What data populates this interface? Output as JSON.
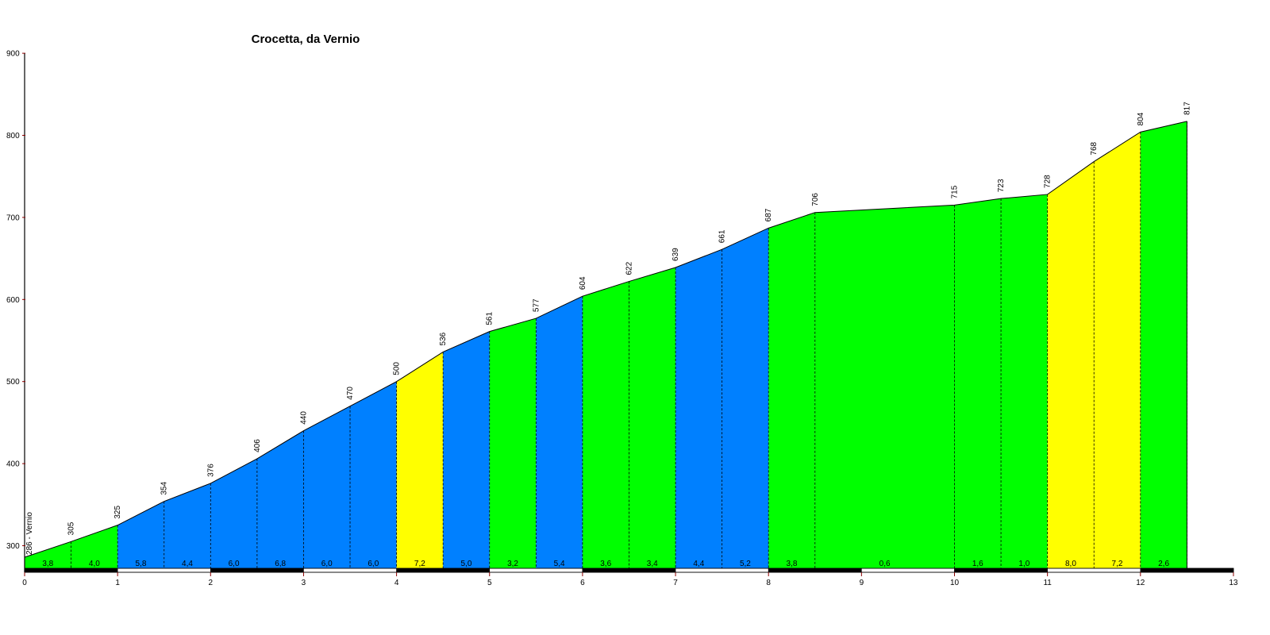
{
  "chart_data": {
    "type": "area",
    "title": "Crocetta, da Vernio",
    "xlim": [
      0,
      13
    ],
    "ylim": [
      270,
      900
    ],
    "x_ticks": [
      "0",
      "1",
      "2",
      "3",
      "4",
      "5",
      "6",
      "7",
      "8",
      "9",
      "10",
      "11",
      "12",
      "13"
    ],
    "y_ticks": [
      "300",
      "400",
      "500",
      "600",
      "700",
      "800",
      "900"
    ],
    "start_label": "286 - Vernio",
    "points": [
      {
        "x": 0,
        "y": 286
      },
      {
        "x": 0.5,
        "y": 305
      },
      {
        "x": 1,
        "y": 325
      },
      {
        "x": 1.5,
        "y": 354
      },
      {
        "x": 2,
        "y": 376
      },
      {
        "x": 2.5,
        "y": 406
      },
      {
        "x": 3,
        "y": 440
      },
      {
        "x": 3.5,
        "y": 470
      },
      {
        "x": 4,
        "y": 500
      },
      {
        "x": 4.5,
        "y": 536
      },
      {
        "x": 5,
        "y": 561
      },
      {
        "x": 5.5,
        "y": 577
      },
      {
        "x": 6,
        "y": 604
      },
      {
        "x": 6.5,
        "y": 622
      },
      {
        "x": 7,
        "y": 639
      },
      {
        "x": 7.5,
        "y": 661
      },
      {
        "x": 8,
        "y": 687
      },
      {
        "x": 8.5,
        "y": 706
      },
      {
        "x": 10,
        "y": 715
      },
      {
        "x": 10.5,
        "y": 723
      },
      {
        "x": 11,
        "y": 728
      },
      {
        "x": 11.5,
        "y": 768
      },
      {
        "x": 12,
        "y": 804
      },
      {
        "x": 12.5,
        "y": 817
      }
    ],
    "elevation_labels": [
      "305",
      "325",
      "354",
      "376",
      "406",
      "440",
      "470",
      "500",
      "536",
      "561",
      "577",
      "604",
      "622",
      "639",
      "661",
      "687",
      "706",
      "715",
      "723",
      "728",
      "768",
      "804",
      "817"
    ],
    "segments": [
      {
        "from": 0,
        "to": 0.5,
        "gradient": "3,8",
        "color": "#00ff00"
      },
      {
        "from": 0.5,
        "to": 1,
        "gradient": "4,0",
        "color": "#00ff00"
      },
      {
        "from": 1,
        "to": 1.5,
        "gradient": "5,8",
        "color": "#0080ff"
      },
      {
        "from": 1.5,
        "to": 2,
        "gradient": "4,4",
        "color": "#0080ff"
      },
      {
        "from": 2,
        "to": 2.5,
        "gradient": "6,0",
        "color": "#0080ff"
      },
      {
        "from": 2.5,
        "to": 3,
        "gradient": "6,8",
        "color": "#0080ff"
      },
      {
        "from": 3,
        "to": 3.5,
        "gradient": "6,0",
        "color": "#0080ff"
      },
      {
        "from": 3.5,
        "to": 4,
        "gradient": "6,0",
        "color": "#0080ff"
      },
      {
        "from": 4,
        "to": 4.5,
        "gradient": "7,2",
        "color": "#ffff00"
      },
      {
        "from": 4.5,
        "to": 5,
        "gradient": "5,0",
        "color": "#0080ff"
      },
      {
        "from": 5,
        "to": 5.5,
        "gradient": "3,2",
        "color": "#00ff00"
      },
      {
        "from": 5.5,
        "to": 6,
        "gradient": "5,4",
        "color": "#0080ff"
      },
      {
        "from": 6,
        "to": 6.5,
        "gradient": "3,6",
        "color": "#00ff00"
      },
      {
        "from": 6.5,
        "to": 7,
        "gradient": "3,4",
        "color": "#00ff00"
      },
      {
        "from": 7,
        "to": 7.5,
        "gradient": "4,4",
        "color": "#0080ff"
      },
      {
        "from": 7.5,
        "to": 8,
        "gradient": "5,2",
        "color": "#0080ff"
      },
      {
        "from": 8,
        "to": 8.5,
        "gradient": "3,8",
        "color": "#00ff00"
      },
      {
        "from": 8.5,
        "to": 10,
        "gradient": "0,6",
        "color": "#00ff00"
      },
      {
        "from": 10,
        "to": 10.5,
        "gradient": "1,6",
        "color": "#00ff00"
      },
      {
        "from": 10.5,
        "to": 11,
        "gradient": "1,0",
        "color": "#00ff00"
      },
      {
        "from": 11,
        "to": 11.5,
        "gradient": "8,0",
        "color": "#ffff00"
      },
      {
        "from": 11.5,
        "to": 12,
        "gradient": "7,2",
        "color": "#ffff00"
      },
      {
        "from": 12,
        "to": 12.5,
        "gradient": "2,6",
        "color": "#00ff00"
      }
    ],
    "grid": false,
    "legend": "none"
  }
}
